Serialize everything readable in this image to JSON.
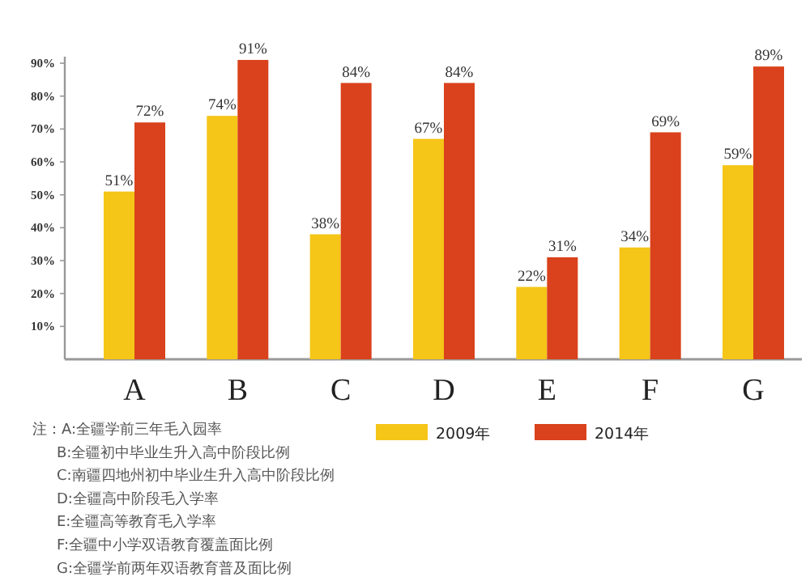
{
  "chart_data": {
    "type": "bar",
    "categories": [
      "A",
      "B",
      "C",
      "D",
      "E",
      "F",
      "G"
    ],
    "series": [
      {
        "name": "2009年",
        "color": "#f5c518",
        "values": [
          51,
          74,
          38,
          67,
          22,
          34,
          59
        ],
        "value_labels": [
          "51%",
          "74%",
          "38%",
          "67%",
          "22%",
          "34%",
          "59%"
        ]
      },
      {
        "name": "2014年",
        "color": "#d9421c",
        "values": [
          72,
          91,
          84,
          84,
          31,
          69,
          89
        ],
        "value_labels": [
          "72%",
          "91%",
          "84%",
          "84%",
          "31%",
          "69%",
          "89%"
        ]
      }
    ],
    "ylim": [
      0,
      92
    ],
    "yticks": [
      {
        "value": 10,
        "label": "10%"
      },
      {
        "value": 20,
        "label": "20%"
      },
      {
        "value": 30,
        "label": "30%"
      },
      {
        "value": 40,
        "label": "40%"
      },
      {
        "value": 50,
        "label": "50%"
      },
      {
        "value": 60,
        "label": "60%"
      },
      {
        "value": 70,
        "label": "70%"
      },
      {
        "value": 80,
        "label": "80%"
      },
      {
        "value": 90,
        "label": "90%"
      }
    ],
    "legend": "bottom",
    "annotations": [
      "注：A:全疆学前三年毛入园率",
      "B:全疆初中毕业生升入高中阶段比例",
      "C:南疆四地州初中毕业生升入高中阶段比例",
      "D:全疆高中阶段毛入学率",
      "E:全疆高等教育毛入学率",
      "F:全疆中小学双语教育覆盖面比例",
      "G:全疆学前两年双语教育普及面比例"
    ]
  }
}
